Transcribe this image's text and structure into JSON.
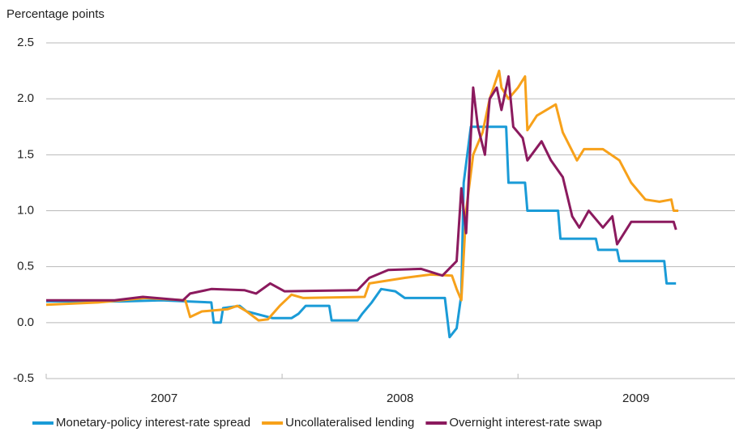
{
  "chart_data": {
    "type": "line",
    "y_label": "Percentage points",
    "xlim": [
      2007,
      2009.92
    ],
    "xticks": [
      2007,
      2008,
      2009
    ],
    "ylim": [
      -0.5,
      2.5
    ],
    "yticks": [
      {
        "value": -0.5,
        "label": "-0.5"
      },
      {
        "value": 0,
        "label": "0.0"
      },
      0.5,
      {
        "value": 1,
        "label": "1.0"
      },
      1.5,
      {
        "value": 2,
        "label": "2.0"
      },
      2.5
    ],
    "grid": true,
    "legend": "bottom",
    "series": [
      {
        "name": "Monetary-policy interest-rate spread",
        "color": "#1a9bd7",
        "x": [
          2007.0,
          2007.32,
          2007.49,
          2007.7,
          2007.71,
          2007.74,
          2007.75,
          2007.82,
          2007.85,
          2007.96,
          2008.04,
          2008.07,
          2008.1,
          2008.2,
          2008.21,
          2008.32,
          2008.34,
          2008.38,
          2008.42,
          2008.48,
          2008.52,
          2008.69,
          2008.71,
          2008.74,
          2008.76,
          2008.77,
          2008.8,
          2008.95,
          2008.96,
          2009.03,
          2009.04,
          2009.17,
          2009.18,
          2009.33,
          2009.34,
          2009.42,
          2009.43,
          2009.62,
          2009.63,
          2009.67
        ],
        "values": [
          0.19,
          0.19,
          0.2,
          0.18,
          0.0,
          0.0,
          0.13,
          0.15,
          0.1,
          0.04,
          0.04,
          0.08,
          0.15,
          0.15,
          0.02,
          0.02,
          0.08,
          0.18,
          0.3,
          0.28,
          0.22,
          0.22,
          -0.13,
          -0.05,
          0.25,
          1.25,
          1.75,
          1.75,
          1.25,
          1.25,
          1.0,
          1.0,
          0.75,
          0.75,
          0.65,
          0.65,
          0.55,
          0.55,
          0.35,
          0.35
        ]
      },
      {
        "name": "Uncollateralised lending",
        "color": "#f7a11a",
        "x": [
          2007.0,
          2007.22,
          2007.42,
          2007.59,
          2007.61,
          2007.66,
          2007.77,
          2007.81,
          2007.85,
          2007.9,
          2007.94,
          2007.99,
          2008.04,
          2008.09,
          2008.35,
          2008.37,
          2008.52,
          2008.63,
          2008.72,
          2008.74,
          2008.76,
          2008.78,
          2008.81,
          2008.85,
          2008.88,
          2008.92,
          2008.93,
          2008.96,
          2009.0,
          2009.03,
          2009.04,
          2009.08,
          2009.16,
          2009.19,
          2009.25,
          2009.28,
          2009.36,
          2009.43,
          2009.48,
          2009.54,
          2009.6,
          2009.65,
          2009.66,
          2009.68
        ],
        "values": [
          0.16,
          0.18,
          0.22,
          0.2,
          0.05,
          0.1,
          0.12,
          0.15,
          0.1,
          0.02,
          0.03,
          0.15,
          0.25,
          0.22,
          0.23,
          0.35,
          0.4,
          0.43,
          0.42,
          0.3,
          0.2,
          1.0,
          1.5,
          1.7,
          2.0,
          2.25,
          2.1,
          2.0,
          2.1,
          2.2,
          1.72,
          1.85,
          1.95,
          1.7,
          1.45,
          1.55,
          1.55,
          1.45,
          1.25,
          1.1,
          1.08,
          1.1,
          1.0,
          1.0
        ]
      },
      {
        "name": "Overnight interest-rate swap",
        "color": "#8b1a5e",
        "x": [
          2007.0,
          2007.29,
          2007.41,
          2007.58,
          2007.61,
          2007.7,
          2007.84,
          2007.89,
          2007.95,
          2008.01,
          2008.32,
          2008.37,
          2008.45,
          2008.59,
          2008.68,
          2008.74,
          2008.76,
          2008.78,
          2008.81,
          2008.83,
          2008.86,
          2008.88,
          2008.91,
          2008.93,
          2008.96,
          2008.98,
          2009.02,
          2009.04,
          2009.1,
          2009.14,
          2009.19,
          2009.23,
          2009.26,
          2009.3,
          2009.36,
          2009.4,
          2009.42,
          2009.48,
          2009.66,
          2009.67
        ],
        "values": [
          0.2,
          0.2,
          0.23,
          0.2,
          0.26,
          0.3,
          0.29,
          0.26,
          0.35,
          0.28,
          0.29,
          0.4,
          0.47,
          0.48,
          0.42,
          0.55,
          1.2,
          0.8,
          2.1,
          1.75,
          1.5,
          2.0,
          2.1,
          1.9,
          2.2,
          1.75,
          1.65,
          1.45,
          1.62,
          1.45,
          1.3,
          0.95,
          0.85,
          1.0,
          0.85,
          0.95,
          0.7,
          0.9,
          0.9,
          0.83
        ]
      }
    ]
  }
}
